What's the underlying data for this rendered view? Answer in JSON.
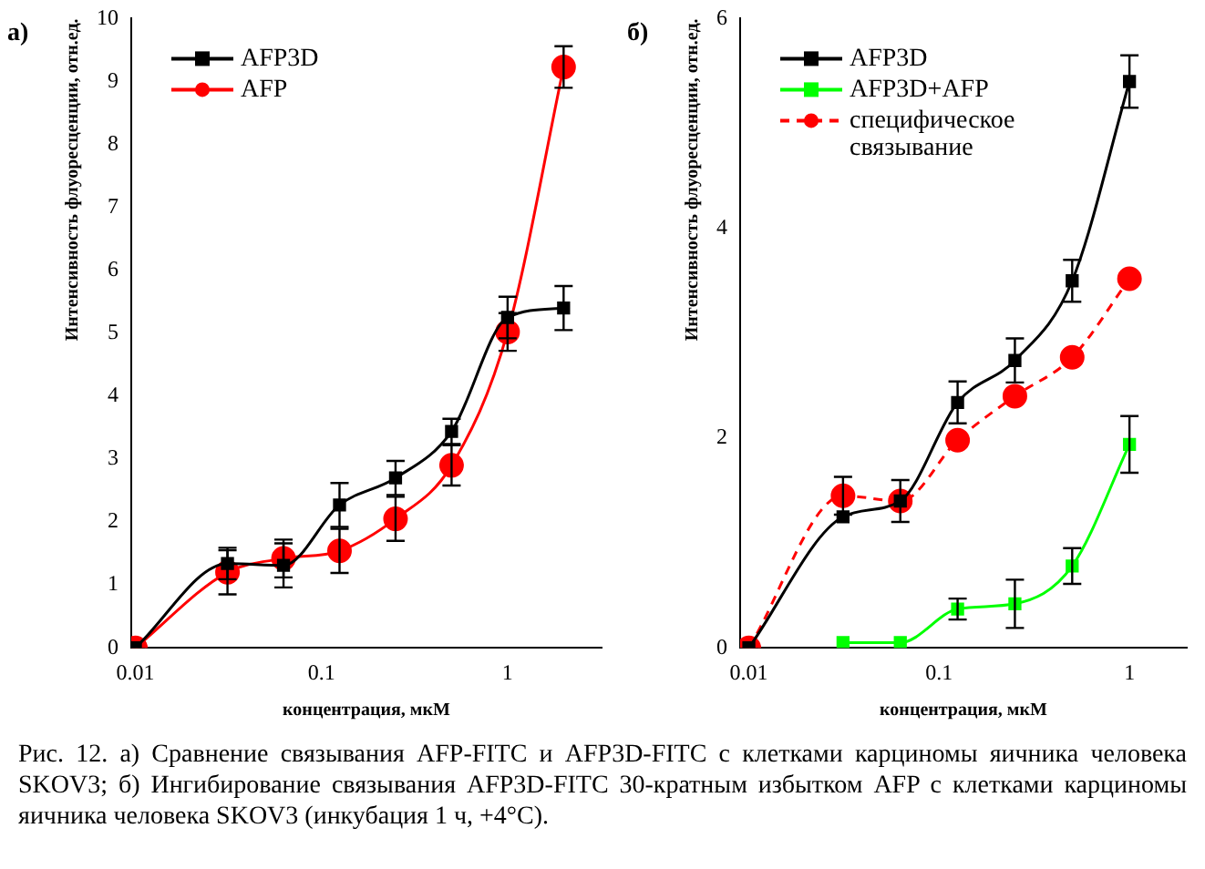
{
  "chart_data": [
    {
      "type": "line",
      "title": "а)",
      "xlabel": "концентрация, мкМ",
      "ylabel": "Интенсивность флуоресценции, отн.ед.",
      "log": "x",
      "xlim": [
        0.0095,
        3.2
      ],
      "xticks": [
        0.01,
        0.1,
        1
      ],
      "ylim": [
        0,
        10
      ],
      "yticks": [
        0,
        1,
        2,
        3,
        4,
        5,
        6,
        7,
        8,
        9,
        10
      ],
      "grid": false,
      "legend": "top left",
      "annotations": [
        "Рис. 12. а) Сравнение связывания AFP-FITC и AFP3D-FITC с клетками карциномы яичника человека SKOV3; б) Ингибирование связывания AFP3D-FITC 30-кратным избытком AFP с клетками карциномы яичника человека SKOV3 (инкубация 1 ч, +4°С)."
      ],
      "x": [
        0.01,
        0.03125,
        0.0625,
        0.125,
        0.25,
        0.5,
        1,
        2
      ],
      "series": [
        {
          "name": "AFP3D",
          "color": "#000000",
          "marker": "square",
          "line_style": "solid",
          "values": [
            0,
            1.34,
            1.31,
            2.27,
            2.7,
            3.44,
            5.25,
            5.4
          ],
          "errors": [
            null,
            0.25,
            0.35,
            0.35,
            0.27,
            0.2,
            0.33,
            0.35
          ]
        },
        {
          "name": "AFP",
          "color": "#ff0000",
          "marker": "circle",
          "line_style": "solid",
          "values": [
            0,
            1.2,
            1.42,
            1.54,
            2.05,
            2.9,
            5.02,
            9.23
          ],
          "errors": [
            null,
            0.35,
            0.3,
            0.35,
            0.35,
            0.32,
            0.3,
            0.33
          ]
        }
      ]
    },
    {
      "type": "line",
      "title": "б)",
      "xlabel": "концентрация, мкМ",
      "ylabel": "Интенсивность флуоресценции, отн.ед.",
      "log": "x",
      "xlim": [
        0.009,
        2
      ],
      "xticks": [
        0.01,
        0.1,
        1
      ],
      "ylim": [
        0,
        6
      ],
      "yticks": [
        0,
        2,
        4,
        6
      ],
      "grid": false,
      "legend": "top left",
      "x": [
        0.01,
        0.03125,
        0.0625,
        0.125,
        0.25,
        0.5,
        1
      ],
      "series": [
        {
          "name": "AFP3D",
          "color": "#000000",
          "marker": "square",
          "line_style": "solid",
          "values": [
            0,
            1.25,
            1.4,
            2.34,
            2.74,
            3.5,
            5.4
          ],
          "errors": [
            null,
            null,
            0.2,
            0.2,
            0.21,
            0.2,
            0.25
          ]
        },
        {
          "name": "AFP3D+AFP",
          "color": "#00ff00",
          "marker": "square",
          "line_style": "solid",
          "values": [
            null,
            0.05,
            0.05,
            0.37,
            0.42,
            0.78,
            1.94
          ],
          "errors": [
            null,
            null,
            null,
            0.1,
            0.23,
            0.17,
            0.27
          ]
        },
        {
          "name": "специфическое связывание",
          "color": "#ff0000",
          "marker": "circle",
          "line_style": "dashed",
          "values": [
            0,
            1.45,
            1.4,
            1.98,
            2.4,
            2.77,
            3.52
          ],
          "errors": [
            null,
            0.18,
            null,
            null,
            null,
            null,
            null
          ]
        }
      ]
    }
  ]
}
